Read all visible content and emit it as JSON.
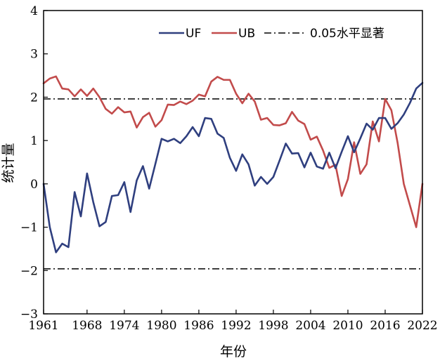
{
  "chart_data": {
    "type": "line",
    "xlabel": "年份",
    "ylabel": "统计量",
    "xlim": [
      1961,
      2022
    ],
    "ylim": [
      -3,
      4
    ],
    "xticks": [
      1961,
      1968,
      1974,
      1980,
      1986,
      1992,
      1998,
      2004,
      2010,
      2016,
      2022
    ],
    "xtick_labels": [
      "1961",
      "1968",
      "1974",
      "1980",
      "1986",
      "1992",
      "1998",
      "2004",
      "2010",
      "2016",
      "2022"
    ],
    "yticks": [
      -3,
      -2,
      -1,
      0,
      1,
      2,
      3,
      4
    ],
    "ytick_labels": [
      "−3",
      "−2",
      "−1",
      "0",
      "1",
      "2",
      "3",
      "4"
    ],
    "legend_position": "top-right",
    "x": [
      1961,
      1962,
      1963,
      1964,
      1965,
      1966,
      1967,
      1968,
      1969,
      1970,
      1971,
      1972,
      1973,
      1974,
      1975,
      1976,
      1977,
      1978,
      1979,
      1980,
      1981,
      1982,
      1983,
      1984,
      1985,
      1986,
      1987,
      1988,
      1989,
      1990,
      1991,
      1992,
      1993,
      1994,
      1995,
      1996,
      1997,
      1998,
      1999,
      2000,
      2001,
      2002,
      2003,
      2004,
      2005,
      2006,
      2007,
      2008,
      2009,
      2010,
      2011,
      2012,
      2013,
      2014,
      2015,
      2016,
      2017,
      2018,
      2019,
      2020,
      2021,
      2022
    ],
    "series": [
      {
        "name": "UF",
        "label": "UF",
        "color": "#2f3f7f",
        "values": [
          0.0,
          -1.0,
          -1.58,
          -1.38,
          -1.46,
          -0.19,
          -0.75,
          0.24,
          -0.42,
          -0.98,
          -0.88,
          -0.28,
          -0.26,
          0.04,
          -0.65,
          0.08,
          0.41,
          -0.11,
          0.46,
          1.04,
          0.98,
          1.04,
          0.94,
          1.1,
          1.31,
          1.1,
          1.52,
          1.5,
          1.16,
          1.06,
          0.6,
          0.3,
          0.68,
          0.45,
          -0.04,
          0.16,
          0.0,
          0.16,
          0.54,
          0.93,
          0.7,
          0.71,
          0.38,
          0.72,
          0.4,
          0.35,
          0.72,
          0.36,
          0.74,
          1.1,
          0.73,
          1.05,
          1.39,
          1.25,
          1.52,
          1.52,
          1.27,
          1.4,
          1.6,
          1.87,
          2.2,
          2.33
        ]
      },
      {
        "name": "UB",
        "label": "UB",
        "color": "#c24b4b",
        "values": [
          2.32,
          2.43,
          2.48,
          2.2,
          2.18,
          2.02,
          2.18,
          2.03,
          2.2,
          2.0,
          1.73,
          1.62,
          1.77,
          1.65,
          1.67,
          1.3,
          1.54,
          1.64,
          1.32,
          1.47,
          1.83,
          1.82,
          1.9,
          1.84,
          1.92,
          2.06,
          2.02,
          2.36,
          2.47,
          2.4,
          2.4,
          2.08,
          1.86,
          2.08,
          1.9,
          1.48,
          1.52,
          1.36,
          1.35,
          1.4,
          1.66,
          1.46,
          1.38,
          1.02,
          1.09,
          0.77,
          0.37,
          0.44,
          -0.28,
          0.11,
          0.96,
          0.23,
          0.45,
          1.44,
          0.98,
          1.96,
          1.7,
          0.95,
          0.0,
          -0.5,
          -1.0,
          0.0
        ]
      }
    ],
    "reference_lines": [
      {
        "label": "0.05水平显著",
        "values": [
          1.96,
          -1.96
        ],
        "color": "#000000",
        "style": "dash-dot"
      }
    ]
  }
}
